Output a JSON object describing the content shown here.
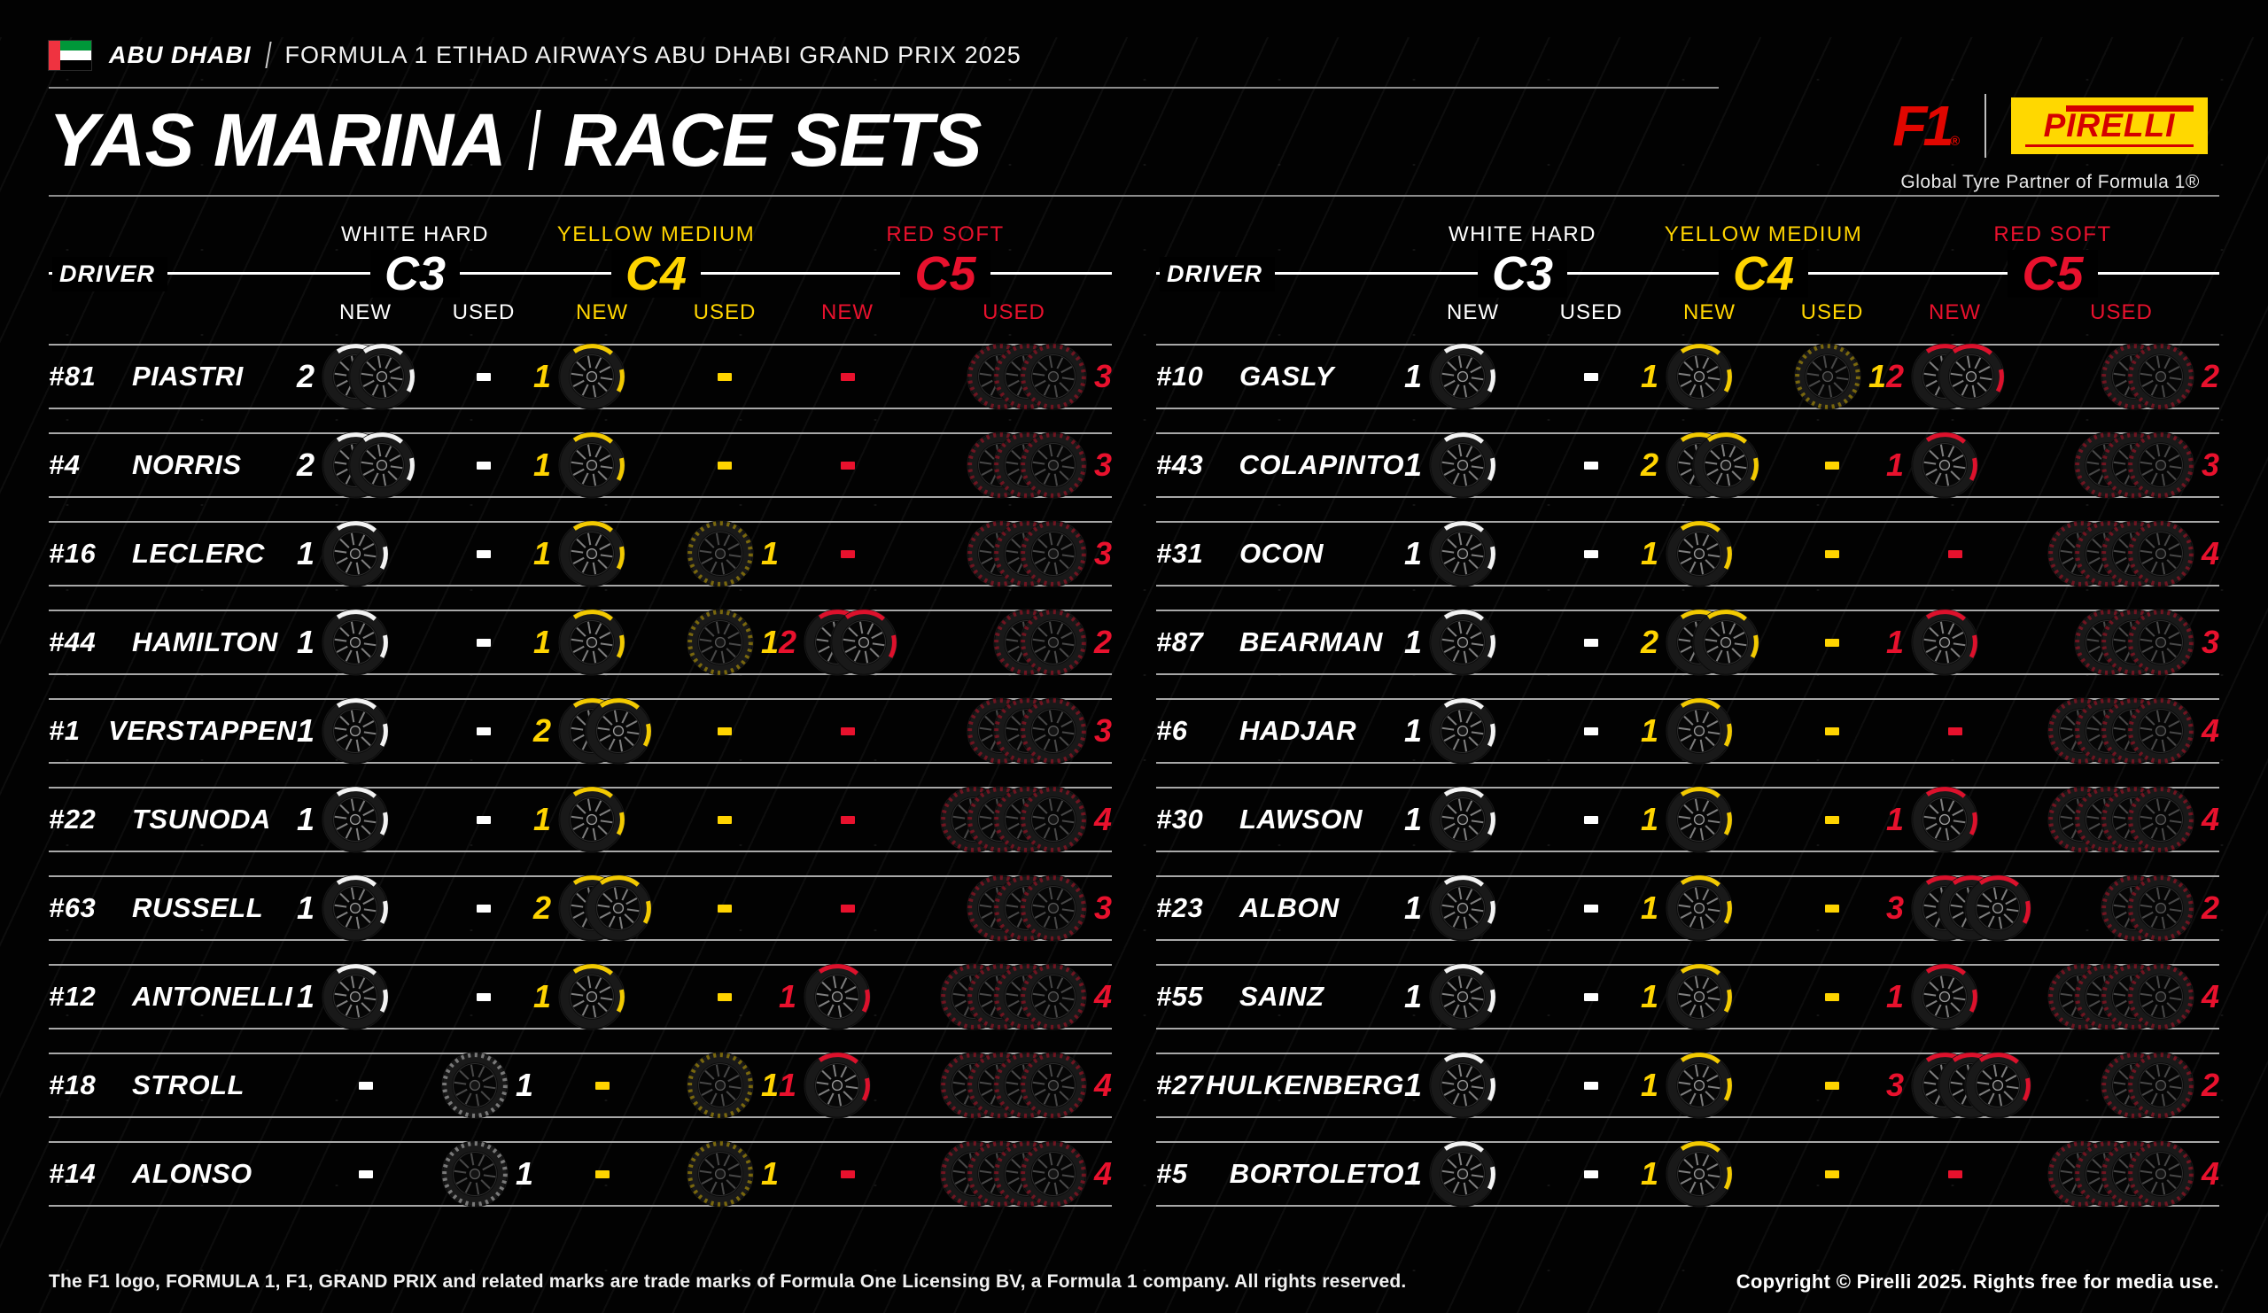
{
  "header": {
    "event_label": "ABU DHABI",
    "event_title": "FORMULA 1 ETIHAD AIRWAYS ABU DHABI GRAND PRIX 2025"
  },
  "title": {
    "left": "YAS MARINA",
    "right": "RACE SETS"
  },
  "logos": {
    "f1_text": "F1",
    "pirelli_text": "PIRELLI",
    "caption": "Global Tyre Partner of Formula 1®"
  },
  "table_header": {
    "driver": "DRIVER",
    "new_label": "NEW",
    "used_label": "USED",
    "compounds": [
      {
        "name": "WHITE HARD",
        "code": "C3",
        "color": "#ffffff"
      },
      {
        "name": "YELLOW MEDIUM",
        "code": "C4",
        "color": "#ffd400"
      },
      {
        "name": "RED SOFT",
        "code": "C5",
        "color": "#e8112d"
      }
    ]
  },
  "tables": [
    {
      "side": "left",
      "rows": [
        {
          "num": "#81",
          "name": "PIASTRI",
          "sets": [
            [
              2,
              0
            ],
            [
              1,
              0
            ],
            [
              0,
              3
            ]
          ]
        },
        {
          "num": "#4",
          "name": "NORRIS",
          "sets": [
            [
              2,
              0
            ],
            [
              1,
              0
            ],
            [
              0,
              3
            ]
          ]
        },
        {
          "num": "#16",
          "name": "LECLERC",
          "sets": [
            [
              1,
              0
            ],
            [
              1,
              1
            ],
            [
              0,
              3
            ]
          ]
        },
        {
          "num": "#44",
          "name": "HAMILTON",
          "sets": [
            [
              1,
              0
            ],
            [
              1,
              1
            ],
            [
              2,
              2
            ]
          ]
        },
        {
          "num": "#1",
          "name": "VERSTAPPEN",
          "sets": [
            [
              1,
              0
            ],
            [
              2,
              0
            ],
            [
              0,
              3
            ]
          ]
        },
        {
          "num": "#22",
          "name": "TSUNODA",
          "sets": [
            [
              1,
              0
            ],
            [
              1,
              0
            ],
            [
              0,
              4
            ]
          ]
        },
        {
          "num": "#63",
          "name": "RUSSELL",
          "sets": [
            [
              1,
              0
            ],
            [
              2,
              0
            ],
            [
              0,
              3
            ]
          ]
        },
        {
          "num": "#12",
          "name": "ANTONELLI",
          "sets": [
            [
              1,
              0
            ],
            [
              1,
              0
            ],
            [
              1,
              4
            ]
          ]
        },
        {
          "num": "#18",
          "name": "STROLL",
          "sets": [
            [
              0,
              1
            ],
            [
              0,
              1
            ],
            [
              1,
              4
            ]
          ]
        },
        {
          "num": "#14",
          "name": "ALONSO",
          "sets": [
            [
              0,
              1
            ],
            [
              0,
              1
            ],
            [
              0,
              4
            ]
          ]
        }
      ]
    },
    {
      "side": "right",
      "rows": [
        {
          "num": "#10",
          "name": "GASLY",
          "sets": [
            [
              1,
              0
            ],
            [
              1,
              1
            ],
            [
              2,
              2
            ]
          ]
        },
        {
          "num": "#43",
          "name": "COLAPINTO",
          "sets": [
            [
              1,
              0
            ],
            [
              2,
              0
            ],
            [
              1,
              3
            ]
          ]
        },
        {
          "num": "#31",
          "name": "OCON",
          "sets": [
            [
              1,
              0
            ],
            [
              1,
              0
            ],
            [
              0,
              4
            ]
          ]
        },
        {
          "num": "#87",
          "name": "BEARMAN",
          "sets": [
            [
              1,
              0
            ],
            [
              2,
              0
            ],
            [
              1,
              3
            ]
          ]
        },
        {
          "num": "#6",
          "name": "HADJAR",
          "sets": [
            [
              1,
              0
            ],
            [
              1,
              0
            ],
            [
              0,
              4
            ]
          ]
        },
        {
          "num": "#30",
          "name": "LAWSON",
          "sets": [
            [
              1,
              0
            ],
            [
              1,
              0
            ],
            [
              1,
              4
            ]
          ]
        },
        {
          "num": "#23",
          "name": "ALBON",
          "sets": [
            [
              1,
              0
            ],
            [
              1,
              0
            ],
            [
              3,
              2
            ]
          ]
        },
        {
          "num": "#55",
          "name": "SAINZ",
          "sets": [
            [
              1,
              0
            ],
            [
              1,
              0
            ],
            [
              1,
              4
            ]
          ]
        },
        {
          "num": "#27",
          "name": "HULKENBERG",
          "sets": [
            [
              1,
              0
            ],
            [
              1,
              0
            ],
            [
              3,
              2
            ]
          ]
        },
        {
          "num": "#5",
          "name": "BORTOLETO",
          "sets": [
            [
              1,
              0
            ],
            [
              1,
              0
            ],
            [
              0,
              4
            ]
          ]
        }
      ]
    }
  ],
  "footer": {
    "left": "The F1 logo, FORMULA 1, F1, GRAND PRIX and related marks are trade marks of Formula One Licensing BV, a Formula 1 company. All rights reserved.",
    "right": "Copyright © Pirelli 2025. Rights free for media use."
  },
  "chart_data": {
    "type": "table",
    "title": "YAS MARINA | RACE SETS — FORMULA 1 ETIHAD AIRWAYS ABU DHABI GRAND PRIX 2025",
    "columns": [
      "Driver",
      "C3 Hard New",
      "C3 Hard Used",
      "C4 Medium New",
      "C4 Medium Used",
      "C5 Soft New",
      "C5 Soft Used"
    ],
    "rows": [
      [
        "#81 PIASTRI",
        2,
        0,
        1,
        0,
        0,
        3
      ],
      [
        "#4 NORRIS",
        2,
        0,
        1,
        0,
        0,
        3
      ],
      [
        "#16 LECLERC",
        1,
        0,
        1,
        1,
        0,
        3
      ],
      [
        "#44 HAMILTON",
        1,
        0,
        1,
        1,
        2,
        2
      ],
      [
        "#1 VERSTAPPEN",
        1,
        0,
        2,
        0,
        0,
        3
      ],
      [
        "#22 TSUNODA",
        1,
        0,
        1,
        0,
        0,
        4
      ],
      [
        "#63 RUSSELL",
        1,
        0,
        2,
        0,
        0,
        3
      ],
      [
        "#12 ANTONELLI",
        1,
        0,
        1,
        0,
        1,
        4
      ],
      [
        "#18 STROLL",
        0,
        1,
        0,
        1,
        1,
        4
      ],
      [
        "#14 ALONSO",
        0,
        1,
        0,
        1,
        0,
        4
      ],
      [
        "#10 GASLY",
        1,
        0,
        1,
        1,
        2,
        2
      ],
      [
        "#43 COLAPINTO",
        1,
        0,
        2,
        0,
        1,
        3
      ],
      [
        "#31 OCON",
        1,
        0,
        1,
        0,
        0,
        4
      ],
      [
        "#87 BEARMAN",
        1,
        0,
        2,
        0,
        1,
        3
      ],
      [
        "#6 HADJAR",
        1,
        0,
        1,
        0,
        0,
        4
      ],
      [
        "#30 LAWSON",
        1,
        0,
        1,
        0,
        1,
        4
      ],
      [
        "#23 ALBON",
        1,
        0,
        1,
        0,
        3,
        2
      ],
      [
        "#55 SAINZ",
        1,
        0,
        1,
        0,
        1,
        4
      ],
      [
        "#27 HULKENBERG",
        1,
        0,
        1,
        0,
        3,
        2
      ],
      [
        "#5 BORTOLETO",
        1,
        0,
        1,
        0,
        0,
        4
      ]
    ],
    "notes": "0 represents a dash (no sets) in the graphic; compound colors: C3 white, C4 yellow, C5 red"
  }
}
